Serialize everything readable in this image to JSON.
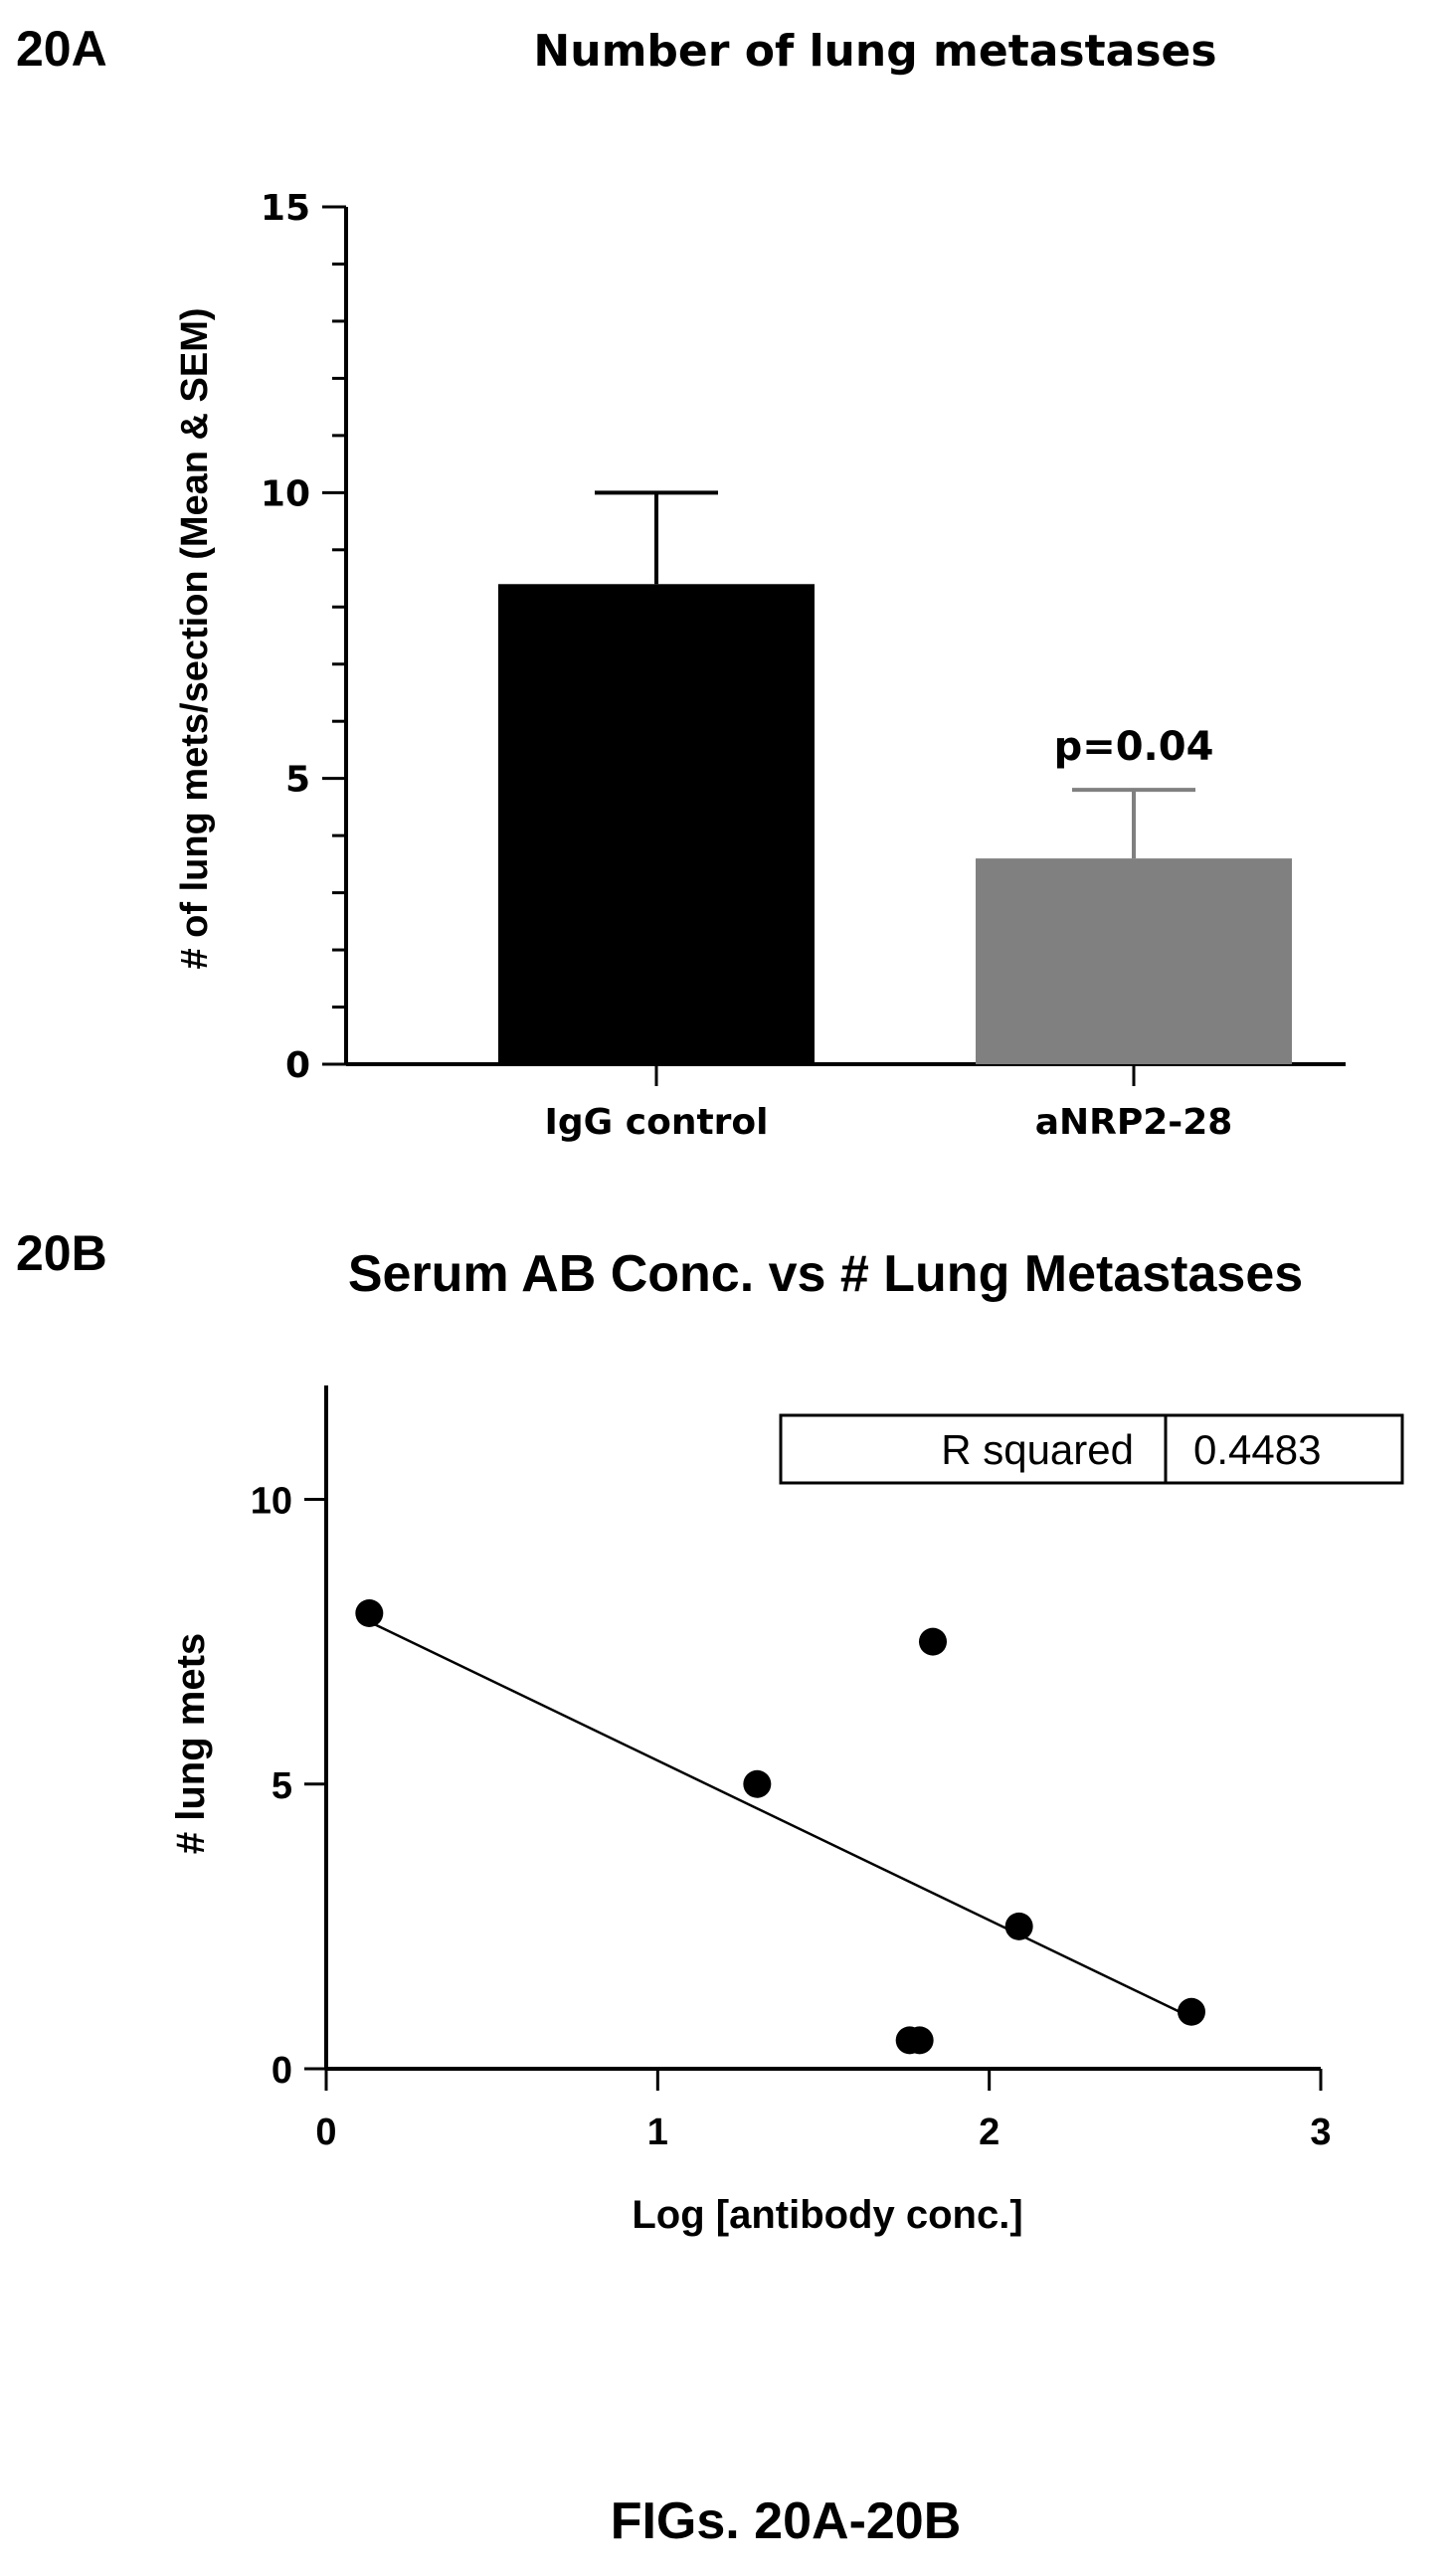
{
  "figure_caption": "FIGs. 20A-20B",
  "chart_data": [
    {
      "panel": "20A",
      "type": "bar",
      "title": "Number of lung metastases",
      "xlabel": "",
      "ylabel": "# of lung mets/section (Mean & SEM)",
      "ylim": [
        0,
        15
      ],
      "yticks": [
        "0",
        "5",
        "10",
        "15"
      ],
      "categories": [
        "IgG control",
        "aNRP2-28"
      ],
      "values": [
        8.4,
        3.6
      ],
      "errors": [
        1.6,
        1.2
      ],
      "colors": [
        "#000000",
        "#808080"
      ],
      "annotations": [
        {
          "category": "aNRP2-28",
          "text": "p=0.04"
        }
      ],
      "grid": false
    },
    {
      "panel": "20B",
      "type": "scatter",
      "title": "Serum AB Conc. vs # Lung Metastases",
      "xlabel": "Log [antibody conc.]",
      "ylabel": "# lung mets",
      "xlim": [
        0,
        3
      ],
      "ylim": [
        0,
        12
      ],
      "xticks": [
        "0",
        "1",
        "2",
        "3"
      ],
      "yticks": [
        "0",
        "5",
        "10"
      ],
      "points": [
        {
          "x": 0.13,
          "y": 8.0
        },
        {
          "x": 1.3,
          "y": 5.0
        },
        {
          "x": 1.76,
          "y": 0.5
        },
        {
          "x": 1.79,
          "y": 0.5
        },
        {
          "x": 1.83,
          "y": 7.5
        },
        {
          "x": 2.09,
          "y": 2.5
        },
        {
          "x": 2.61,
          "y": 1.0
        }
      ],
      "fit_line": {
        "x1": 0.13,
        "y1": 7.85,
        "x2": 2.61,
        "y2": 0.9
      },
      "stats": {
        "label": "R squared",
        "value": "0.4483"
      },
      "grid": false
    }
  ]
}
